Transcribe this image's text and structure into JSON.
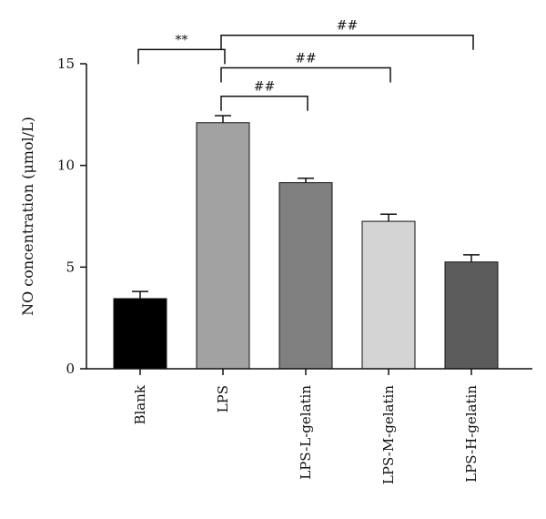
{
  "chart_data": {
    "type": "bar",
    "title": "",
    "xlabel": "",
    "ylabel": "NO concentration (μmol/L)",
    "ylim": [
      0,
      15
    ],
    "yticks": [
      0,
      5,
      10,
      15
    ],
    "grid": false,
    "categories": [
      "Blank",
      "LPS",
      "LPS-L-gelatin",
      "LPS-M-gelatin",
      "LPS-H-gelatin"
    ],
    "values": [
      3.45,
      12.1,
      9.15,
      7.25,
      5.25
    ],
    "errors": [
      0.35,
      0.35,
      0.22,
      0.35,
      0.35
    ],
    "colors": [
      "#000000",
      "#a2a2a2",
      "#808080",
      "#d4d4d4",
      "#5c5c5c"
    ],
    "significance": [
      {
        "from": "Blank",
        "to": "LPS",
        "label": "**",
        "y": 15.7
      },
      {
        "from": "LPS",
        "to": "LPS-L-gelatin",
        "label": "##",
        "y": 13.4
      },
      {
        "from": "LPS",
        "to": "LPS-M-gelatin",
        "label": "##",
        "y": 14.8
      },
      {
        "from": "LPS",
        "to": "LPS-H-gelatin",
        "label": "##",
        "y": 16.4
      }
    ]
  }
}
